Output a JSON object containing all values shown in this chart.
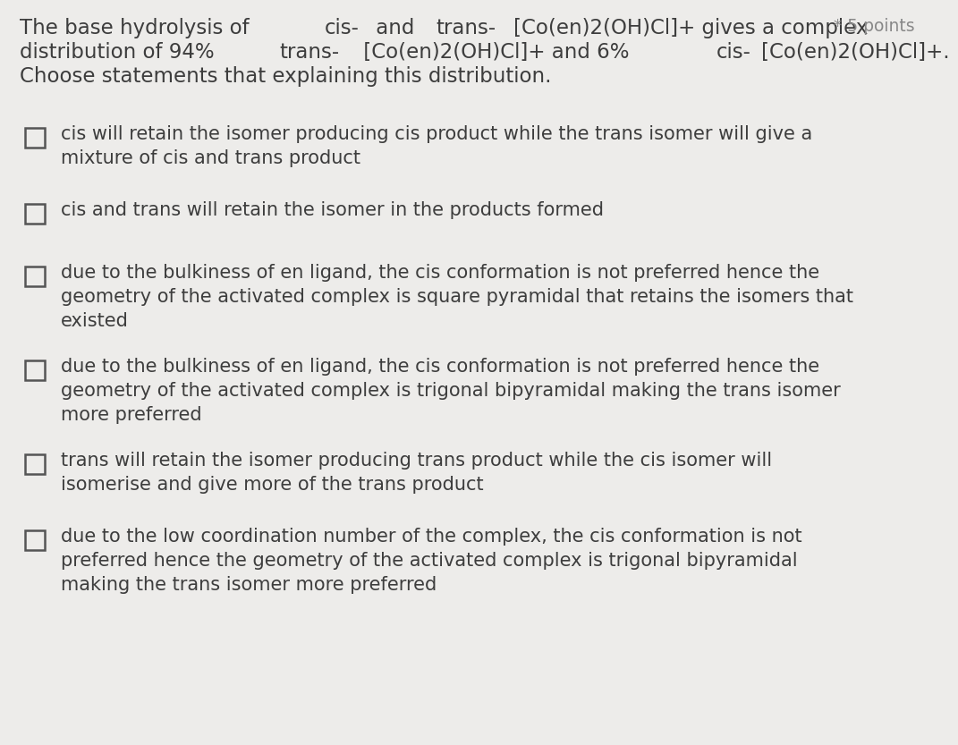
{
  "background_color": "#edecea",
  "points_label": "* 5 points",
  "text_color": "#3d3d3d",
  "checkbox_color": "#555555",
  "font_size_title": 16.5,
  "font_size_options": 15.0,
  "font_size_points": 13.5,
  "title_segments_line1": [
    [
      "The base hydrolysis of ",
      false,
      false
    ],
    [
      "cis-",
      false,
      true
    ],
    [
      " and ",
      false,
      false
    ],
    [
      "trans-",
      false,
      true
    ],
    [
      "[Co(en)2(OH)Cl]+ gives a complex",
      false,
      false
    ]
  ],
  "title_segments_line2": [
    [
      "distribution of 94% ",
      false,
      false
    ],
    [
      "trans-",
      false,
      true
    ],
    [
      " [Co(en)2(OH)Cl]+ and 6% ",
      false,
      false
    ],
    [
      "cis-",
      false,
      true
    ],
    [
      "[Co(en)2(OH)Cl]+.",
      false,
      false
    ]
  ],
  "title_line3": "Choose statements that explaining this distribution.",
  "options": [
    "cis will retain the isomer producing cis product while the trans isomer will give a\nmixture of cis and trans product",
    "cis and trans will retain the isomer in the products formed",
    "due to the bulkiness of en ligand, the cis conformation is not preferred hence the\ngeometry of the activated complex is square pyramidal that retains the isomers that\nexisted",
    "due to the bulkiness of en ligand, the cis conformation is not preferred hence the\ngeometry of the activated complex is trigonal bipyramidal making the trans isomer\nmore preferred",
    "trans will retain the isomer producing trans product while the cis isomer will\nisomerise and give more of the trans product",
    "due to the low coordination number of the complex, the cis conformation is not\npreferred hence the geometry of the activated complex is trigonal bipyramidal\nmaking the trans isomer more preferred"
  ]
}
